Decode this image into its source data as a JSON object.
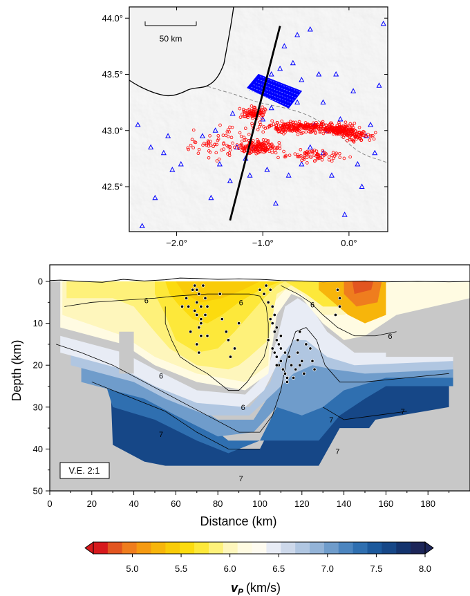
{
  "chart_data": [
    {
      "type": "map",
      "x_ticks": [
        "−2.0°",
        "−1.0°",
        "0.0°"
      ],
      "x_values": [
        -2.0,
        -1.0,
        0.0
      ],
      "y_ticks": [
        "44.0°",
        "43.5°",
        "43.0°",
        "42.5°"
      ],
      "y_values": [
        44.0,
        43.5,
        43.0,
        42.5
      ],
      "xlim": [
        -2.55,
        0.45
      ],
      "ylim": [
        42.1,
        44.1
      ],
      "scale_bar": "50 km",
      "profile_line": {
        "start": [
          -1.38,
          42.2
        ],
        "end": [
          -0.8,
          43.93
        ]
      },
      "stations_color": "#0000ff",
      "events_color": "#ff0000",
      "stations": [
        [
          -2.4,
          42.15
        ],
        [
          -2.25,
          42.4
        ],
        [
          -2.05,
          42.65
        ],
        [
          -1.95,
          42.7
        ],
        [
          -2.3,
          42.85
        ],
        [
          -2.15,
          42.8
        ],
        [
          -1.5,
          42.7
        ],
        [
          -1.38,
          42.55
        ],
        [
          -1.3,
          42.85
        ],
        [
          -1.2,
          42.75
        ],
        [
          -1.15,
          42.6
        ],
        [
          -0.95,
          42.65
        ],
        [
          -0.85,
          42.35
        ],
        [
          -0.7,
          42.6
        ],
        [
          -0.55,
          42.7
        ],
        [
          -0.45,
          42.85
        ],
        [
          -0.3,
          42.8
        ],
        [
          -0.2,
          42.6
        ],
        [
          -0.05,
          42.25
        ],
        [
          0.1,
          42.7
        ],
        [
          0.2,
          42.95
        ],
        [
          0.3,
          42.8
        ],
        [
          0.25,
          43.05
        ],
        [
          -0.1,
          43.1
        ],
        [
          0.35,
          43.4
        ],
        [
          0.4,
          43.95
        ],
        [
          -0.45,
          43.9
        ],
        [
          -0.65,
          43.6
        ],
        [
          -0.55,
          43.45
        ],
        [
          -0.35,
          43.5
        ],
        [
          -0.8,
          43.55
        ],
        [
          -0.9,
          43.5
        ],
        [
          -0.75,
          43.75
        ],
        [
          -0.6,
          43.85
        ],
        [
          -0.15,
          43.5
        ],
        [
          -1.35,
          43.15
        ],
        [
          -1.55,
          43.0
        ],
        [
          -1.7,
          42.95
        ],
        [
          -2.45,
          43.05
        ],
        [
          -2.1,
          42.95
        ],
        [
          -1.0,
          43.1
        ],
        [
          -0.9,
          43.2
        ],
        [
          -0.3,
          43.25
        ],
        [
          0.05,
          43.35
        ],
        [
          -0.6,
          43.25
        ],
        [
          -0.25,
          43.0
        ],
        [
          -0.4,
          43.05
        ],
        [
          0.15,
          42.5
        ],
        [
          -1.1,
          42.85
        ],
        [
          -1.6,
          42.4
        ]
      ]
    },
    {
      "type": "heatmap",
      "xlabel": "Distance (km)",
      "ylabel": "Depth (km)",
      "x_ticks": [
        "0",
        "20",
        "40",
        "60",
        "80",
        "100",
        "120",
        "140",
        "160",
        "180"
      ],
      "x_values": [
        0,
        20,
        40,
        60,
        80,
        100,
        120,
        140,
        160,
        180
      ],
      "y_ticks": [
        "0",
        "10",
        "20",
        "30",
        "40",
        "50"
      ],
      "y_values": [
        0,
        10,
        20,
        30,
        40,
        50
      ],
      "xlim": [
        0,
        200
      ],
      "ylim": [
        50,
        -5
      ],
      "annotation": "V.E. 2:1",
      "contour_labels": [
        {
          "value": "6",
          "x": 46,
          "y": 4.5
        },
        {
          "value": "6",
          "x": 91,
          "y": 5
        },
        {
          "value": "6",
          "x": 125,
          "y": 5.5
        },
        {
          "value": "6",
          "x": 162,
          "y": 13
        },
        {
          "value": "6",
          "x": 53,
          "y": 22.5
        },
        {
          "value": "6",
          "x": 92,
          "y": 30
        },
        {
          "value": "7",
          "x": 53,
          "y": 36.5
        },
        {
          "value": "7",
          "x": 91,
          "y": 47
        },
        {
          "value": "7",
          "x": 134,
          "y": 33
        },
        {
          "value": "7",
          "x": 168,
          "y": 31
        },
        {
          "value": "7",
          "x": 137,
          "y": 40.5
        }
      ],
      "events": [
        [
          69,
          1
        ],
        [
          70,
          2
        ],
        [
          71,
          3
        ],
        [
          70,
          5
        ],
        [
          72,
          6
        ],
        [
          69,
          7
        ],
        [
          70,
          8
        ],
        [
          72,
          9
        ],
        [
          71,
          11
        ],
        [
          72,
          13
        ],
        [
          70,
          15
        ],
        [
          71,
          17
        ],
        [
          65,
          4
        ],
        [
          66,
          6
        ],
        [
          74,
          4
        ],
        [
          75,
          6
        ],
        [
          73,
          1
        ],
        [
          68,
          2
        ],
        [
          74,
          8
        ],
        [
          72,
          10
        ],
        [
          67,
          12
        ],
        [
          75,
          13
        ],
        [
          63,
          6
        ],
        [
          103,
          1
        ],
        [
          105,
          2
        ],
        [
          102,
          3
        ],
        [
          104,
          5
        ],
        [
          106,
          6
        ],
        [
          107,
          8
        ],
        [
          105,
          9
        ],
        [
          106,
          10
        ],
        [
          108,
          11
        ],
        [
          107,
          12
        ],
        [
          108,
          14
        ],
        [
          109,
          15
        ],
        [
          110,
          16
        ],
        [
          107,
          17
        ],
        [
          108,
          18
        ],
        [
          110,
          19
        ],
        [
          109,
          20
        ],
        [
          111,
          21
        ],
        [
          112,
          22
        ],
        [
          113,
          23
        ],
        [
          108,
          20
        ],
        [
          106,
          16
        ],
        [
          104,
          14
        ],
        [
          110,
          13
        ],
        [
          112,
          17
        ],
        [
          114,
          18
        ],
        [
          115,
          20
        ],
        [
          117,
          21
        ],
        [
          119,
          20
        ],
        [
          120,
          19
        ],
        [
          118,
          17
        ],
        [
          121,
          22
        ],
        [
          116,
          23
        ],
        [
          113,
          24
        ],
        [
          119,
          12
        ],
        [
          118,
          14
        ],
        [
          122,
          15
        ],
        [
          84,
          12
        ],
        [
          85,
          14
        ],
        [
          88,
          16
        ],
        [
          90,
          10
        ],
        [
          86,
          18
        ],
        [
          82,
          9
        ],
        [
          124,
          16
        ],
        [
          125,
          19
        ],
        [
          126,
          21
        ],
        [
          100,
          2
        ],
        [
          137,
          2
        ],
        [
          138,
          4
        ],
        [
          138,
          6
        ],
        [
          136,
          8
        ],
        [
          81,
          3
        ]
      ],
      "colorbar": {
        "label": "v",
        "label_sub": "P",
        "label_units": "(km/s)",
        "tick_labels": [
          "5.0",
          "5.5",
          "6.0",
          "6.5",
          "7.0",
          "7.5",
          "8.0"
        ],
        "tick_values": [
          5.0,
          5.5,
          6.0,
          6.5,
          7.0,
          7.5,
          8.0
        ],
        "range": [
          4.6,
          8.0
        ],
        "colors": [
          "#d7191c",
          "#e25520",
          "#ef7d1e",
          "#f59a11",
          "#f7b50b",
          "#f9cb08",
          "#fcdb0e",
          "#fde83a",
          "#fef17a",
          "#fef6bc",
          "#fffbe2",
          "#fefbf0",
          "#e8ecf5",
          "#cdd8ea",
          "#b0c6e1",
          "#93b3d7",
          "#6f9ccb",
          "#4c85bf",
          "#2f6fb0",
          "#1c599c",
          "#164787",
          "#13336d",
          "#1c2558"
        ]
      }
    }
  ]
}
